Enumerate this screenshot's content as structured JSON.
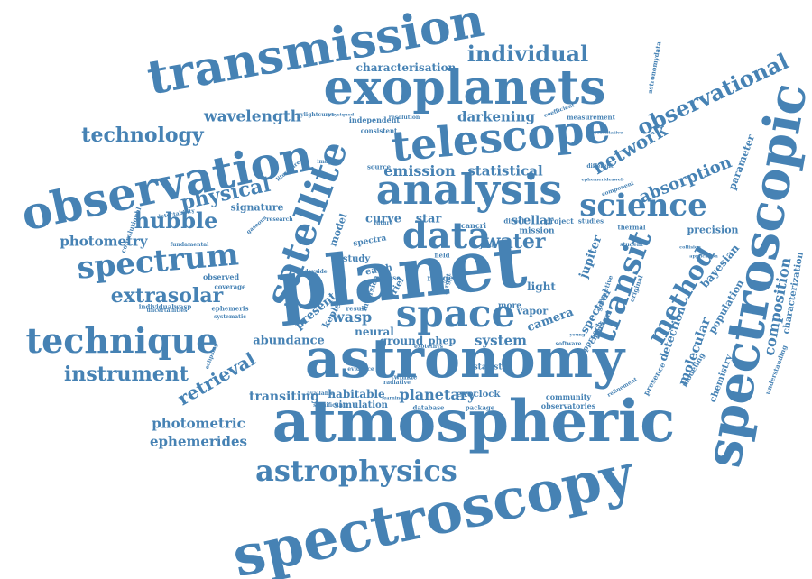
{
  "color": "#4682b4",
  "words": [
    "spectroscopy",
    "atmospheric",
    "planet",
    "astronomy",
    "spectroscopic",
    "exoplanets",
    "transmission",
    "observation",
    "telescope",
    "analysis",
    "satellite",
    "space",
    "data",
    "technique",
    "spectrum",
    "transit",
    "science",
    "method",
    "astrophysics",
    "observational",
    "individual",
    "technology",
    "wavelength",
    "hubble",
    "physical",
    "extrasolar",
    "instrument",
    "photometry",
    "network",
    "absorption",
    "composition",
    "water",
    "emission",
    "statistical",
    "darkening",
    "characterisation",
    "retrieval",
    "transiting",
    "planetary",
    "photometric",
    "ephemerides",
    "molecular",
    "detection",
    "bayesian",
    "parameter",
    "precision",
    "population",
    "characterization",
    "chemistry",
    "jupiter",
    "spectral",
    "wasp",
    "present",
    "system",
    "abundance",
    "signature",
    "stellar",
    "curve",
    "star",
    "model",
    "camera",
    "vapor",
    "ground",
    "neural",
    "habitable",
    "simulation",
    "exoclock",
    "community",
    "observatories",
    "kepler",
    "ariel",
    "light",
    "phep",
    "statistic",
    "database",
    "package",
    "significant",
    "available",
    "mission",
    "project",
    "studies",
    "thermal",
    "student",
    "application",
    "measurement",
    "coefficient",
    "independent",
    "consistent",
    "imaging",
    "convolutional",
    "fundamental",
    "observed",
    "coverage",
    "ephemeris",
    "systematic",
    "uncertainties",
    "individualwasp",
    "eclipsing",
    "learning",
    "refinement",
    "software",
    "presence",
    "modeling",
    "understanding",
    "research",
    "detectability",
    "gaseous",
    "different",
    "component",
    "source",
    "eclipse",
    "cancri",
    "direct",
    "resolution",
    "physiqued",
    "pylightcurve",
    "literature",
    "chemical",
    "approach",
    "young",
    "collision",
    "twinkle",
    "range",
    "field",
    "result",
    "more",
    "study",
    "dayside",
    "earth",
    "spectra",
    "future",
    "evidence",
    "exotethys",
    "generative",
    "original",
    "astronomydata",
    "representative",
    "ephemeridesweb",
    "jwst",
    "target",
    "inversion",
    "radiative"
  ]
}
